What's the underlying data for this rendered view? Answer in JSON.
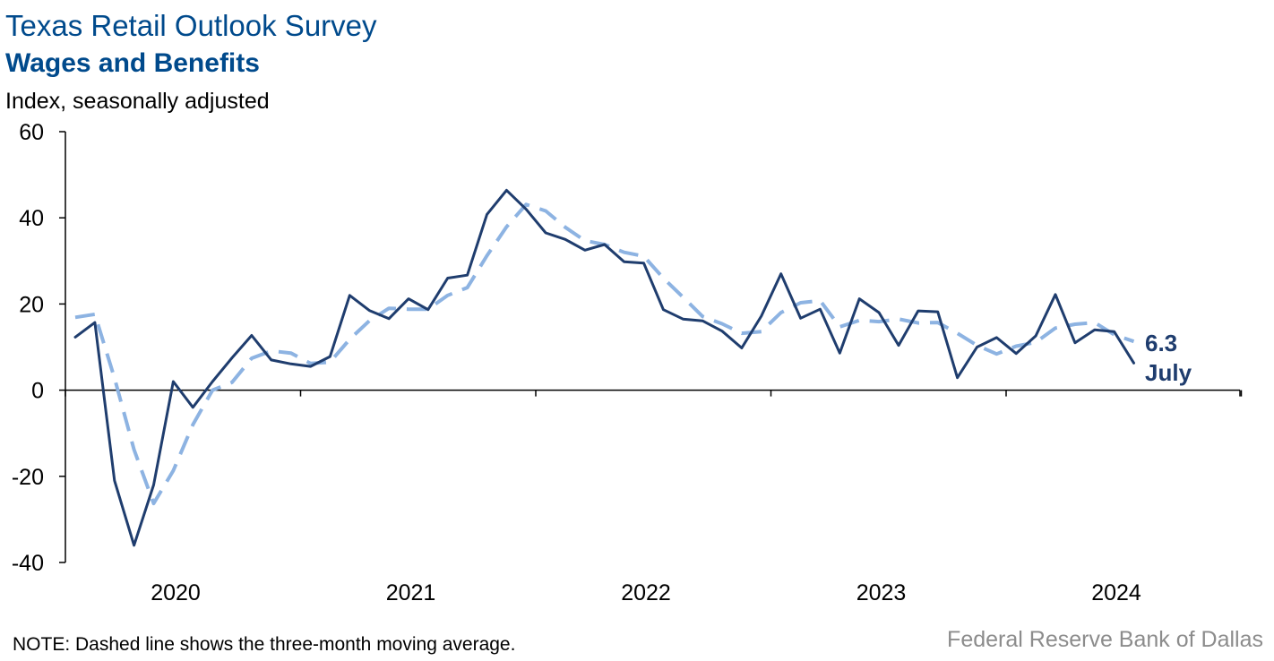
{
  "header": {
    "title": "Texas Retail Outlook Survey",
    "subtitle": "Wages and Benefits",
    "unit_label": "Index, seasonally adjusted"
  },
  "footer": {
    "note": "NOTE: Dashed line shows the three-month moving average.",
    "source": "Federal Reserve Bank of Dallas"
  },
  "annotation": {
    "value": "6.3",
    "month": "July"
  },
  "colors": {
    "title": "#004a8c",
    "series_line": "#1f3d6e",
    "moving_average": "#8db3e2",
    "axis": "#000000",
    "source": "#8c8c8c"
  },
  "chart_data": {
    "type": "line",
    "title": "Wages and Benefits",
    "ylabel": "Index, seasonally adjusted",
    "ylim": [
      -40,
      60
    ],
    "yticks": [
      60,
      40,
      20,
      0,
      -20,
      -40
    ],
    "x_start": "2019-08",
    "x_end": "2024-07",
    "x_tick_labels": [
      "2020",
      "2021",
      "2022",
      "2023",
      "2024"
    ],
    "grid": false,
    "legend": "none",
    "series": [
      {
        "style": "solid",
        "values": [
          12.3,
          15.7,
          -21,
          -36,
          -22,
          2,
          -4,
          2,
          7.5,
          12.7,
          7,
          6.1,
          5.5,
          7.8,
          22,
          18.5,
          16.6,
          21.2,
          18.7,
          26,
          26.7,
          40.8,
          46.4,
          42,
          36.5,
          35,
          32.5,
          33.8,
          29.8,
          29.5,
          18.7,
          16.5,
          16.1,
          13.7,
          9.8,
          17.2,
          27,
          16.7,
          18.8,
          8.6,
          21.2,
          18,
          10.4,
          18.4,
          18.2,
          2.9,
          10,
          12.2,
          8.5,
          12.6,
          22.2,
          11,
          14,
          13.6,
          6.3
        ]
      },
      {
        "style": "dashed",
        "values": [
          16.9,
          17.6,
          2.8,
          -13.8,
          -26.3,
          -18.7,
          -8,
          0,
          1.8,
          7.4,
          9.1,
          8.6,
          6.2,
          6.5,
          11.8,
          16.1,
          19,
          18.8,
          18.8,
          22,
          23.8,
          31.2,
          37.9,
          43.1,
          41.6,
          37.8,
          34.7,
          33.8,
          32,
          31.1,
          26,
          21.6,
          17.1,
          15.4,
          13.2,
          13.6,
          18,
          20.3,
          20.8,
          14.7,
          16.2,
          15.9,
          16.5,
          15.6,
          15.7,
          13.2,
          10.4,
          8.4,
          10.2,
          11.1,
          14.4,
          15.3,
          15.7,
          12.9,
          11.3
        ]
      }
    ]
  }
}
